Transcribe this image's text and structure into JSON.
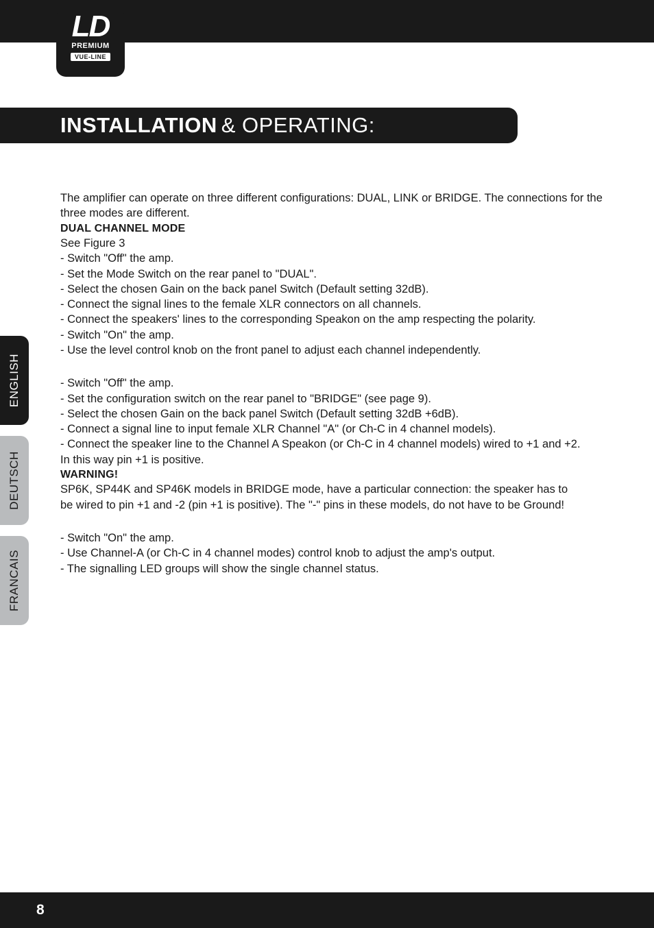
{
  "logo": {
    "line1": "LD",
    "line2": "PREMIUM",
    "line3": "VUE-LINE"
  },
  "section_header": {
    "bold": "INSTALLATION",
    "light": "& OPERATING:"
  },
  "intro": "The amplifier can operate on three different configurations: DUAL, LINK or BRIDGE. The connections for the three modes are different.",
  "dual": {
    "heading": "DUAL CHANNEL MODE",
    "see": "See Figure 3",
    "l1": "- Switch \"Off\" the amp.",
    "l2": "- Set the Mode Switch on the rear panel to \"DUAL\".",
    "l3": "- Select the chosen Gain on the back panel Switch (Default setting 32dB).",
    "l4": "- Connect the signal lines to the female XLR connectors on all channels.",
    "l5": "- Connect the speakers' lines to the corresponding Speakon on the amp respecting the polarity.",
    "l6": "- Switch \"On\" the amp.",
    "l7": "- Use the level control knob on the front panel to adjust each channel independently."
  },
  "bridge": {
    "l1": "- Switch \"Off\" the amp.",
    "l2": "- Set the configuration switch on the rear panel to \"BRIDGE\" (see page 9).",
    "l3": "- Select the chosen Gain on the back panel Switch (Default setting 32dB +6dB).",
    "l4": "- Connect a signal line to input female XLR Channel \"A\" (or Ch-C in 4 channel models).",
    "l5": "- Connect the speaker line to the Channel A Speakon (or Ch-C in 4 channel models) wired to +1 and +2.",
    "l6": "In this way pin +1 is positive."
  },
  "warning": {
    "heading": "WARNING!",
    "l1": "SP6K, SP44K and SP46K models in BRIDGE mode, have a particular connection: the speaker has to",
    "l2": "be wired to pin +1 and -2 (pin +1 is positive). The \"-\" pins in these models, do not have to be Ground!"
  },
  "final": {
    "l1": "- Switch \"On\" the amp.",
    "l2": "- Use Channel-A (or Ch-C in 4 channel modes) control knob to adjust the amp's output.",
    "l3": "- The signalling LED groups will show the single channel status."
  },
  "tabs": {
    "english": "ENGLISH",
    "deutsch": "DEUTSCH",
    "francais": "FRANCAIS"
  },
  "page_number": "8",
  "colors": {
    "dark": "#1a1a1a",
    "tab_inactive": "#b9bbbd",
    "white": "#ffffff"
  }
}
